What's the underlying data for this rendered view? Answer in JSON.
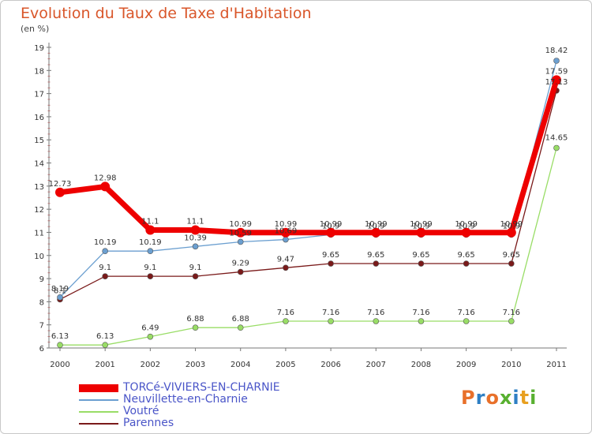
{
  "header": {
    "title": "Evolution du Taux de Taxe d'Habitation",
    "subtitle": "(en %)"
  },
  "chart_data": {
    "type": "line",
    "x": [
      "2000",
      "2001",
      "2002",
      "2003",
      "2004",
      "2005",
      "2006",
      "2007",
      "2008",
      "2009",
      "2010",
      "2011"
    ],
    "ylim": [
      6,
      19
    ],
    "yticks": [
      6,
      7,
      8,
      9,
      10,
      11,
      12,
      13,
      14,
      15,
      16,
      17,
      18,
      19
    ],
    "grid": false,
    "legend_position": "bottom-left",
    "series": [
      {
        "name": "TORCé-VIVIERS-EN-CHARNIE",
        "color": "#ee0000",
        "values": [
          12.73,
          12.98,
          11.1,
          11.1,
          10.99,
          10.99,
          10.99,
          10.99,
          10.99,
          10.99,
          10.99,
          17.59
        ],
        "labels": [
          "12.73",
          "12.98",
          "11.1",
          "11.1",
          "10.99",
          "10.99",
          "10.99",
          "10.99",
          "10.99",
          "10.99",
          "10.99",
          "17.59"
        ]
      },
      {
        "name": "Neuvillette-en-Charnie",
        "color": "#6b9fd0",
        "values": [
          8.19,
          10.19,
          10.19,
          10.39,
          10.59,
          10.69,
          10.9,
          10.9,
          10.9,
          10.9,
          10.9,
          18.42
        ],
        "labels": [
          "8.19",
          "10.19",
          "10.19",
          "10.39",
          "10.59",
          "10.69",
          "10.9",
          "10.9",
          "10.9",
          "10.9",
          "10.9",
          "18.42"
        ]
      },
      {
        "name": "Voutré",
        "color": "#99dd66",
        "values": [
          6.13,
          6.13,
          6.49,
          6.88,
          6.88,
          7.16,
          7.16,
          7.16,
          7.16,
          7.16,
          7.16,
          14.65
        ],
        "labels": [
          "6.13",
          "6.13",
          "6.49",
          "6.88",
          "6.88",
          "7.16",
          "7.16",
          "7.16",
          "7.16",
          "7.16",
          "7.16",
          "14.65"
        ]
      },
      {
        "name": "Parennes",
        "color": "#7a1a1a",
        "values": [
          8.1,
          9.1,
          9.1,
          9.1,
          9.29,
          9.47,
          9.65,
          9.65,
          9.65,
          9.65,
          9.65,
          17.13
        ],
        "labels": [
          "8.1",
          "9.1",
          "9.1",
          "9.1",
          "9.29",
          "9.47",
          "9.65",
          "9.65",
          "9.65",
          "9.65",
          "9.65",
          "17.13"
        ]
      }
    ]
  },
  "legend": {
    "items": [
      {
        "label": "TORCé-VIVIERS-EN-CHARNIE",
        "color": "#ee0000"
      },
      {
        "label": "Neuvillette-en-Charnie",
        "color": "#6b9fd0"
      },
      {
        "label": "Voutré",
        "color": "#99dd66"
      },
      {
        "label": "Parennes",
        "color": "#7a1a1a"
      }
    ]
  },
  "logo": {
    "text": "Proxiti",
    "letter_colors": [
      "#e8702a",
      "#2e7fc4",
      "#e8702a",
      "#58b030",
      "#2e7fc4",
      "#e8a020",
      "#58b030"
    ]
  }
}
